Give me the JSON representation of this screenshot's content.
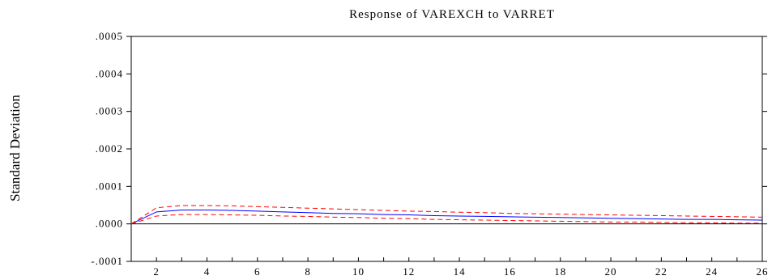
{
  "chart_data": {
    "type": "line",
    "title": "Response of VAREXCH to VARRET",
    "ylabel": "Standard Deviation",
    "xlabel": "",
    "xlim": [
      1,
      26
    ],
    "ylim": [
      -0.0001,
      0.0005
    ],
    "x_ticks": [
      2,
      4,
      6,
      8,
      10,
      12,
      14,
      16,
      18,
      20,
      22,
      24,
      26
    ],
    "y_ticks": [
      {
        "value": 0.0005,
        "label": ".0005"
      },
      {
        "value": 0.0004,
        "label": ".0004"
      },
      {
        "value": 0.0003,
        "label": ".0003"
      },
      {
        "value": 0.0002,
        "label": ".0002"
      },
      {
        "value": 0.0001,
        "label": ".0001"
      },
      {
        "value": 0.0,
        "label": ".0000"
      },
      {
        "value": -0.0001,
        "label": "-.0001"
      }
    ],
    "grid": false,
    "zero_line": true,
    "x": [
      1,
      2,
      3,
      4,
      5,
      6,
      7,
      8,
      9,
      10,
      11,
      12,
      13,
      14,
      15,
      16,
      17,
      18,
      19,
      20,
      21,
      22,
      23,
      24,
      25,
      26
    ],
    "series": [
      {
        "role": "response",
        "color": "#0000ff",
        "dash": "solid",
        "values": [
          0.0,
          3.2e-05,
          3.7e-05,
          3.7e-05,
          3.6e-05,
          3.4e-05,
          3.2e-05,
          3e-05,
          2.8e-05,
          2.7e-05,
          2.5e-05,
          2.4e-05,
          2.2e-05,
          2.1e-05,
          2e-05,
          1.9e-05,
          1.8e-05,
          1.7e-05,
          1.6e-05,
          1.5e-05,
          1.4e-05,
          1.3e-05,
          1.2e-05,
          1.2e-05,
          1.1e-05,
          1e-05
        ]
      },
      {
        "role": "upper band",
        "color": "#ff0000",
        "dash": "dashed",
        "values": [
          0.0,
          4.3e-05,
          4.9e-05,
          4.9e-05,
          4.8e-05,
          4.6e-05,
          4.4e-05,
          4.2e-05,
          4e-05,
          3.8e-05,
          3.6e-05,
          3.4e-05,
          3.3e-05,
          3.1e-05,
          3e-05,
          2.8e-05,
          2.7e-05,
          2.6e-05,
          2.5e-05,
          2.4e-05,
          2.3e-05,
          2.2e-05,
          2.1e-05,
          2e-05,
          1.9e-05,
          1.8e-05
        ]
      },
      {
        "role": "lower band",
        "color": "#ff0000",
        "dash": "dashed",
        "values": [
          0.0,
          2.1e-05,
          2.5e-05,
          2.5e-05,
          2.4e-05,
          2.3e-05,
          2.1e-05,
          2e-05,
          1.8e-05,
          1.7e-05,
          1.5e-05,
          1.4e-05,
          1.2e-05,
          1.1e-05,
          1e-05,
          9e-06,
          8e-06,
          7e-06,
          6e-06,
          5e-06,
          5e-06,
          4e-06,
          3e-06,
          3e-06,
          2e-06,
          2e-06
        ]
      }
    ],
    "colors": {
      "axis": "#000000",
      "zero_line": "#000000"
    }
  }
}
